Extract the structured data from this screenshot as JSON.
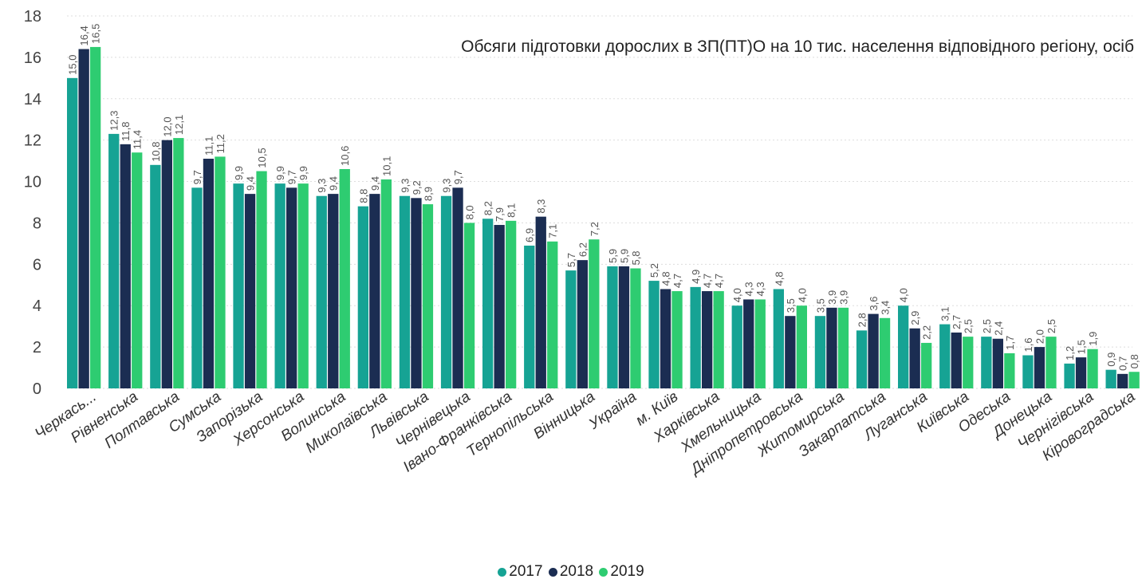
{
  "chart_data": {
    "type": "bar",
    "title": "Обсяги підготовки дорослих в ЗП(ПТ)О на 10 тис. населення відповідного регіону, осіб",
    "categories": [
      "Черкась...",
      "Рівненська",
      "Полтавська",
      "Сумська",
      "Запорізька",
      "Херсонська",
      "Волинська",
      "Миколаївська",
      "Львівська",
      "Чернівецька",
      "Івано-Франківська",
      "Тернопільська",
      "Вінницька",
      "Україна",
      "м. Київ",
      "Харківська",
      "Хмельницька",
      "Дніпропетровська",
      "Житомирська",
      "Закарпатська",
      "Луганська",
      "Київська",
      "Одеська",
      "Донецька",
      "Чернігівська",
      "Кіровоградська"
    ],
    "series": [
      {
        "name": "2017",
        "color": "#16a394",
        "values": [
          15.0,
          12.3,
          10.8,
          9.7,
          9.9,
          9.9,
          9.3,
          8.8,
          9.3,
          9.3,
          8.2,
          6.9,
          5.7,
          5.9,
          5.2,
          4.9,
          4.0,
          4.8,
          3.5,
          2.8,
          4.0,
          3.1,
          2.5,
          1.6,
          1.2,
          0.9
        ],
        "labels": [
          "15,0",
          "12,3",
          "10,8",
          "9,7",
          "9,9",
          "9,9",
          "9,3",
          "8,8",
          "9,3",
          "9,3",
          "8,2",
          "6,9",
          "5,7",
          "5,9",
          "5,2",
          "4,9",
          "4,0",
          "4,8",
          "3,5",
          "2,8",
          "4,0",
          "3,1",
          "2,5",
          "1,6",
          "1,2",
          "0,9"
        ]
      },
      {
        "name": "2018",
        "color": "#1b2d52",
        "values": [
          16.4,
          11.8,
          12.0,
          11.1,
          9.4,
          9.7,
          9.4,
          9.4,
          9.2,
          9.7,
          7.9,
          8.3,
          6.2,
          5.9,
          4.8,
          4.7,
          4.3,
          3.5,
          3.9,
          3.6,
          2.9,
          2.7,
          2.4,
          2.0,
          1.5,
          0.7
        ],
        "labels": [
          "16,4",
          "11,8",
          "12,0",
          "11,1",
          "9,4",
          "9,7",
          "9,4",
          "9,4",
          "9,2",
          "9,7",
          "7,9",
          "8,3",
          "6,2",
          "5,9",
          "4,8",
          "4,7",
          "4,3",
          "3,5",
          "3,9",
          "3,6",
          "2,9",
          "2,7",
          "2,4",
          "2,0",
          "1,5",
          "0,7"
        ]
      },
      {
        "name": "2019",
        "color": "#2ecc71",
        "values": [
          16.5,
          11.4,
          12.1,
          11.2,
          10.5,
          9.9,
          10.6,
          10.1,
          8.9,
          8.0,
          8.1,
          7.1,
          7.2,
          5.8,
          4.7,
          4.7,
          4.3,
          4.0,
          3.9,
          3.4,
          2.2,
          2.5,
          1.7,
          2.5,
          1.9,
          0.8
        ],
        "labels": [
          "16,5",
          "11,4",
          "12,1",
          "11,2",
          "10,5",
          "9,9",
          "10,6",
          "10,1",
          "8,9",
          "8,0",
          "8,1",
          "7,1",
          "7,2",
          "5,8",
          "4,7",
          "4,7",
          "4,3",
          "4,0",
          "3,9",
          "3,4",
          "2,2",
          "2,5",
          "1,7",
          "2,5",
          "1,9",
          "0,8"
        ]
      }
    ],
    "ylim": [
      0,
      18
    ],
    "yticks": [
      "0",
      "2",
      "4",
      "6",
      "8",
      "10",
      "12",
      "14",
      "16",
      "18"
    ],
    "ytick_values": [
      0,
      2,
      4,
      6,
      8,
      10,
      12,
      14,
      16,
      18
    ],
    "grid": true,
    "legend_position": "bottom-center"
  }
}
